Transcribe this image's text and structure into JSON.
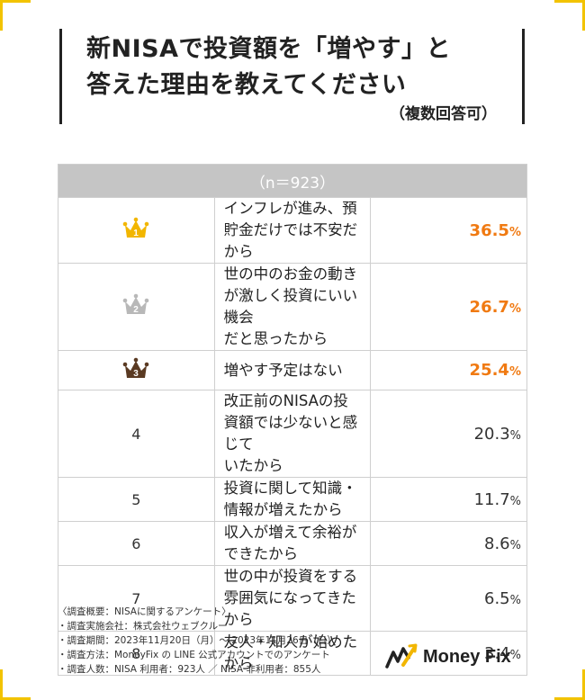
{
  "title": {
    "line1": "新NISAで投資額を「増やす」と",
    "line2": "答えた理由を教えてください",
    "note": "（複数回答可）"
  },
  "table_header": "（n＝923）",
  "chart_data": {
    "type": "table",
    "header": "（n＝923）",
    "unit": "%",
    "rows": [
      {
        "rank": "1",
        "reason": "インフレが進み、預貯金だけでは不安だから",
        "value": 36.5
      },
      {
        "rank": "2",
        "reason": "世の中のお金の動きが激しく投資にいい機会だと思ったから",
        "value": 26.7
      },
      {
        "rank": "3",
        "reason": "増やす予定はない",
        "value": 25.4
      },
      {
        "rank": "4",
        "reason": "改正前のNISAの投資額では少ないと感じていたから",
        "value": 20.3
      },
      {
        "rank": "5",
        "reason": "投資に関して知識・情報が増えたから",
        "value": 11.7
      },
      {
        "rank": "6",
        "reason": "収入が増えて余裕ができたから",
        "value": 8.6
      },
      {
        "rank": "7",
        "reason": "世の中が投資をする雰囲気になってきたから",
        "value": 6.5
      },
      {
        "rank": "8",
        "reason": "友人・知人が始めたから",
        "value": 3.4
      }
    ]
  },
  "rows_display": [
    {
      "rank": "1",
      "line1": "インフレが進み、預貯金だけでは不安だから",
      "line2": "",
      "value": "36.5",
      "unit": "%"
    },
    {
      "rank": "2",
      "line1": "世の中のお金の動きが激しく投資にいい機会",
      "line2": "だと思ったから",
      "value": "26.7",
      "unit": "%"
    },
    {
      "rank": "3",
      "line1": "増やす予定はない",
      "line2": "",
      "value": "25.4",
      "unit": "%"
    },
    {
      "rank": "4",
      "line1": "改正前のNISAの投資額では少ないと感じて",
      "line2": "いたから",
      "value": "20.3",
      "unit": "%"
    },
    {
      "rank": "5",
      "line1": "投資に関して知識・情報が増えたから",
      "line2": "",
      "value": "11.7",
      "unit": "%"
    },
    {
      "rank": "6",
      "line1": "収入が増えて余裕ができたから",
      "line2": "",
      "value": "8.6",
      "unit": "%"
    },
    {
      "rank": "7",
      "line1": "世の中が投資をする雰囲気になってきたから",
      "line2": "",
      "value": "6.5",
      "unit": "%"
    },
    {
      "rank": "8",
      "line1": "友人・知人が始めたから",
      "line2": "",
      "value": "3.4",
      "unit": "%"
    }
  ],
  "crown_colors": {
    "gold": "#f2b600",
    "silver": "#b8b8b8",
    "bronze": "#5a3a22"
  },
  "accent_color": "#f07a12",
  "corner_color": "#f2c300",
  "notes": [
    "〈調査概要：NISAに関するアンケート〉",
    "・調査実施会社：株式会社ウェブクルー",
    "・調査期間：2023年11月20日（月）〜 2023年11月26日（日）",
    "・調査方法：MoneyFix の LINE 公式アカウントでのアンケート",
    "・調査人数：NISA 利用者：923人 ／ NISA 非利用者：855人"
  ],
  "logo": {
    "text": "Money Fix"
  }
}
